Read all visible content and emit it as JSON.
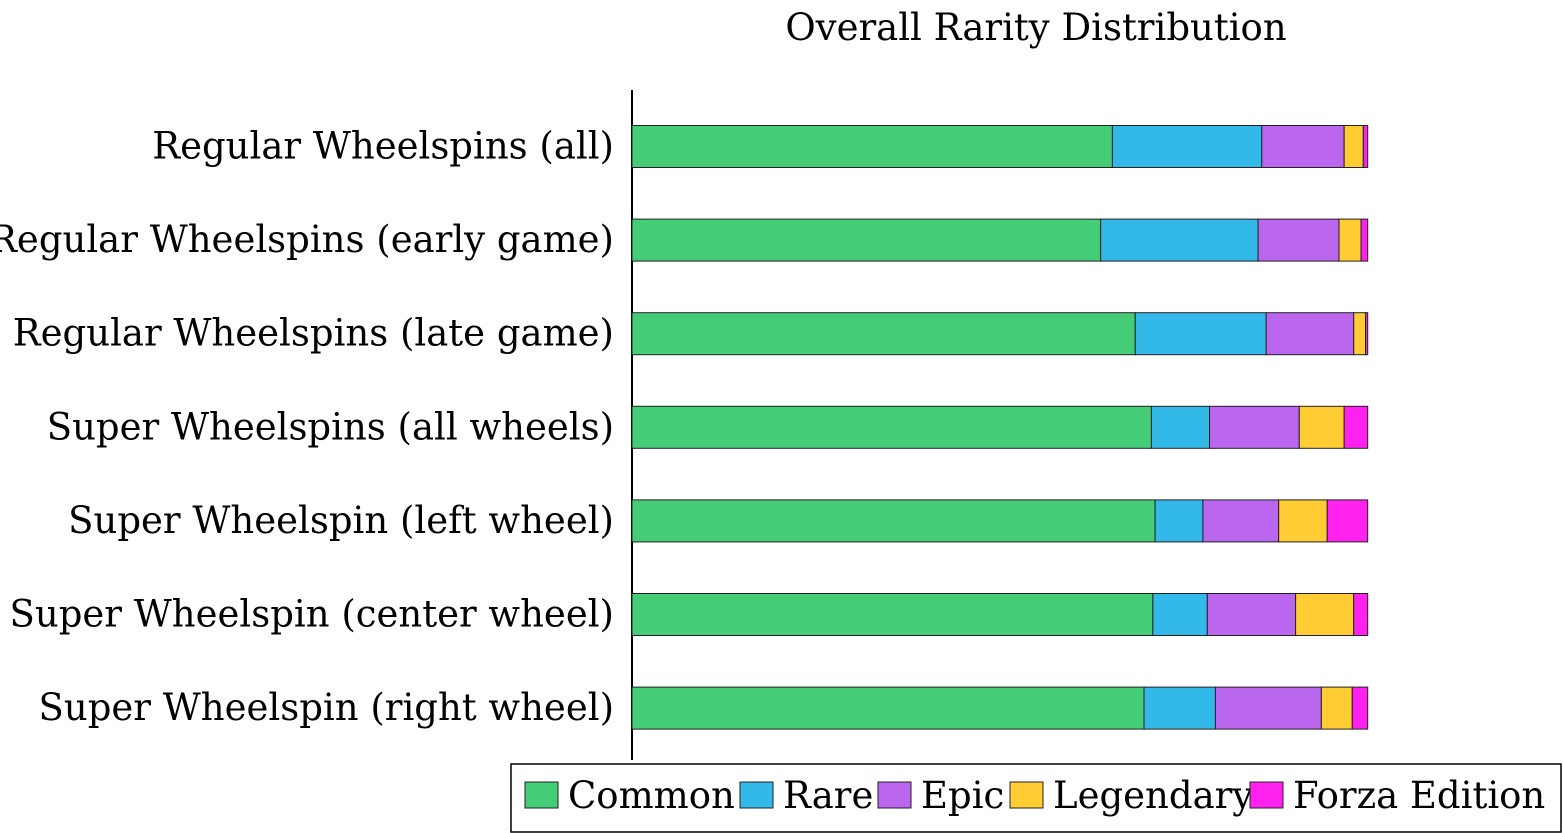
{
  "chart_data": {
    "type": "bar",
    "orientation": "horizontal",
    "stacked": true,
    "title": "Overall Rarity Distribution",
    "xlabel": "",
    "ylabel": "",
    "xlim": [
      0,
      100
    ],
    "grid": false,
    "legend_position": "bottom-right",
    "categories": [
      "Regular Wheelspins (all)",
      "Regular Wheelspins (early game)",
      "Regular Wheelspins (late game)",
      "Super Wheelspins (all wheels)",
      "Super Wheelspin (left wheel)",
      "Super Wheelspin (center wheel)",
      "Super Wheelspin (right wheel)"
    ],
    "series": [
      {
        "name": "Common",
        "color": "#44cc77",
        "values": [
          65.3,
          63.7,
          68.4,
          70.6,
          71.1,
          70.8,
          69.6
        ]
      },
      {
        "name": "Rare",
        "color": "#33b8ea",
        "values": [
          20.3,
          21.4,
          17.8,
          7.9,
          6.5,
          7.4,
          9.7
        ]
      },
      {
        "name": "Epic",
        "color": "#bb66ee",
        "values": [
          11.2,
          11.0,
          11.9,
          12.2,
          10.3,
          12.0,
          14.4
        ]
      },
      {
        "name": "Legendary",
        "color": "#ffcc33",
        "values": [
          2.6,
          3.0,
          1.6,
          6.1,
          6.6,
          7.9,
          4.2
        ]
      },
      {
        "name": "Forza Edition",
        "color": "#ff22ee",
        "values": [
          0.6,
          0.9,
          0.3,
          3.2,
          5.5,
          1.9,
          2.1
        ]
      }
    ]
  }
}
